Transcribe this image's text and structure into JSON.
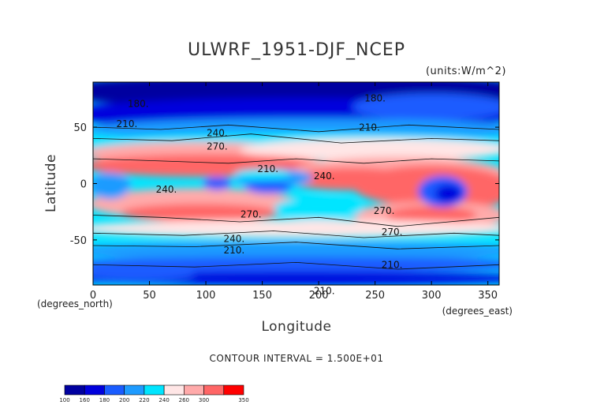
{
  "chart_data": {
    "type": "heatmap",
    "title": "ULWRF_1951-DJF_NCEP",
    "units": "(units:W/m^2)",
    "xlabel": "Longitude",
    "ylabel": "Latitude",
    "x_unit_note": "(degrees_east)",
    "y_unit_note": "(degrees_north)",
    "xlim": [
      0,
      360
    ],
    "ylim": [
      -90,
      90
    ],
    "xticks": [
      0,
      50,
      100,
      150,
      200,
      250,
      300,
      350
    ],
    "yticks": [
      50,
      0,
      -50
    ],
    "contour_interval_text": "CONTOUR INTERVAL = 1.500E+01",
    "contour_interval": 15,
    "colorbar": {
      "levels": [
        100,
        160,
        180,
        200,
        220,
        240,
        260,
        300,
        350
      ],
      "colors": [
        "#0000a0",
        "#0000dd",
        "#1a5cff",
        "#1e9bff",
        "#00e5ff",
        "#ffe6e6",
        "#ffaaaa",
        "#ff6666",
        "#ff0000"
      ]
    },
    "contour_labels": [
      {
        "lon": 250,
        "lat": 73,
        "value": "180."
      },
      {
        "lon": 40,
        "lat": 68,
        "value": "180."
      },
      {
        "lon": 30,
        "lat": 50,
        "value": "210."
      },
      {
        "lon": 110,
        "lat": 42,
        "value": "240."
      },
      {
        "lon": 110,
        "lat": 30,
        "value": "270."
      },
      {
        "lon": 155,
        "lat": 10,
        "value": "210."
      },
      {
        "lon": 65,
        "lat": -8,
        "value": "240."
      },
      {
        "lon": 205,
        "lat": 4,
        "value": "240."
      },
      {
        "lon": 140,
        "lat": -30,
        "value": "270."
      },
      {
        "lon": 125,
        "lat": -52,
        "value": "240."
      },
      {
        "lon": 125,
        "lat": -62,
        "value": "210."
      },
      {
        "lon": 258,
        "lat": -27,
        "value": "270."
      },
      {
        "lon": 265,
        "lat": -46,
        "value": "270."
      },
      {
        "lon": 265,
        "lat": -75,
        "value": "210."
      },
      {
        "lon": 205,
        "lat": -98,
        "value": "210."
      },
      {
        "lon": 245,
        "lat": 47,
        "value": "210."
      }
    ],
    "grid": false
  }
}
